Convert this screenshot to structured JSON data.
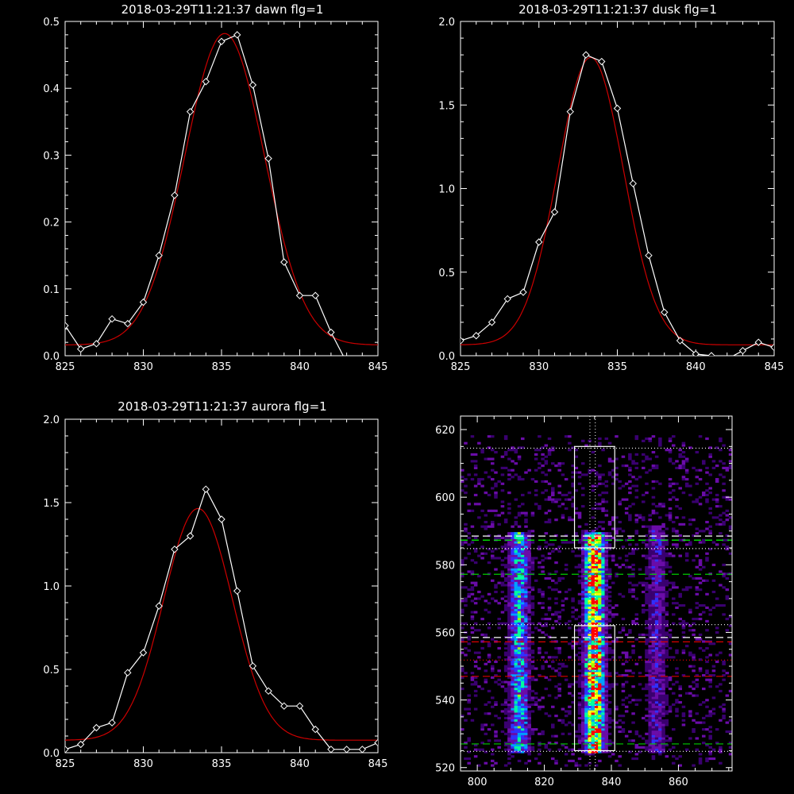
{
  "chart_data": [
    {
      "type": "line",
      "title": "2018-03-29T11:21:37 dawn flg=1",
      "xlim": [
        825,
        845
      ],
      "ylim": [
        0,
        0.5
      ],
      "xticks": [
        "825",
        "830",
        "835",
        "840",
        "845"
      ],
      "yticks": [
        "0.0",
        "0.1",
        "0.2",
        "0.3",
        "0.4",
        "0.5"
      ],
      "series": [
        {
          "style": "data",
          "color": "#ffffff",
          "x": [
            825,
            826,
            827,
            828,
            829,
            830,
            831,
            832,
            833,
            834,
            835,
            836,
            837,
            838,
            839,
            840,
            841,
            842,
            843,
            844
          ],
          "y": [
            0.045,
            0.01,
            0.018,
            0.055,
            0.048,
            0.08,
            0.15,
            0.24,
            0.365,
            0.41,
            0.47,
            0.48,
            0.405,
            0.295,
            0.14,
            0.09,
            0.09,
            0.035,
            -0.01,
            -0.01
          ]
        },
        {
          "style": "fit",
          "color": "#cc0000",
          "gauss": {
            "a": 0.466,
            "mu": 835.2,
            "sigma": 2.55,
            "c": 0.016
          }
        }
      ]
    },
    {
      "type": "line",
      "title": "2018-03-29T11:21:37 dusk flg=1",
      "xlim": [
        825,
        845
      ],
      "ylim": [
        0,
        2.0
      ],
      "xticks": [
        "825",
        "830",
        "835",
        "840",
        "845"
      ],
      "yticks": [
        "0.0",
        "0.5",
        "1.0",
        "1.5",
        "2.0"
      ],
      "series": [
        {
          "style": "data",
          "color": "#ffffff",
          "x": [
            825,
            826,
            827,
            828,
            829,
            830,
            831,
            832,
            833,
            834,
            835,
            836,
            837,
            838,
            839,
            840,
            841,
            842,
            843,
            844,
            845
          ],
          "y": [
            0.09,
            0.12,
            0.2,
            0.34,
            0.38,
            0.68,
            0.86,
            1.46,
            1.8,
            1.76,
            1.48,
            1.03,
            0.6,
            0.26,
            0.09,
            0.01,
            0.0,
            -0.02,
            0.03,
            0.08,
            0.05
          ]
        },
        {
          "style": "fit",
          "color": "#cc0000",
          "gauss": {
            "a": 1.72,
            "mu": 833.3,
            "sigma": 2.1,
            "c": 0.065
          }
        }
      ]
    },
    {
      "type": "line",
      "title": "2018-03-29T11:21:37 aurora flg=1",
      "xlim": [
        825,
        845
      ],
      "ylim": [
        0,
        2.0
      ],
      "xticks": [
        "825",
        "830",
        "835",
        "840",
        "845"
      ],
      "yticks": [
        "0.0",
        "0.5",
        "1.0",
        "1.5",
        "2.0"
      ],
      "series": [
        {
          "style": "data",
          "color": "#ffffff",
          "x": [
            825,
            826,
            827,
            828,
            829,
            830,
            831,
            832,
            833,
            834,
            835,
            836,
            837,
            838,
            839,
            840,
            841,
            842,
            843,
            844,
            845
          ],
          "y": [
            0.02,
            0.05,
            0.15,
            0.18,
            0.48,
            0.6,
            0.88,
            1.22,
            1.3,
            1.58,
            1.4,
            0.97,
            0.52,
            0.37,
            0.28,
            0.28,
            0.14,
            0.02,
            0.02,
            0.02,
            0.06
          ]
        },
        {
          "style": "fit",
          "color": "#cc0000",
          "gauss": {
            "a": 1.39,
            "mu": 833.5,
            "sigma": 2.2,
            "c": 0.075
          }
        }
      ]
    },
    {
      "type": "heatmap",
      "title": "",
      "xlim": [
        795,
        876
      ],
      "ylim": [
        519,
        624
      ],
      "xticks": [
        "800",
        "820",
        "840",
        "860"
      ],
      "yticks": [
        "520",
        "540",
        "560",
        "580",
        "600",
        "620"
      ],
      "colorscale": [
        "#000000",
        "#3a0070",
        "#6a0ca8",
        "#3030ff",
        "#00a0ff",
        "#00ffa0",
        "#a0ff00",
        "#ffff00",
        "#ff0000"
      ],
      "columns": [
        {
          "x": 812,
          "y0": 524,
          "y1": 589,
          "peak": 0.5
        },
        {
          "x": 834.5,
          "y0": 524,
          "y1": 589,
          "peak": 0.85
        },
        {
          "x": 853,
          "y0": 524,
          "y1": 591,
          "peak": 0.28
        }
      ],
      "boxes": [
        {
          "x0": 829,
          "x1": 841,
          "y0": 585,
          "y1": 615
        },
        {
          "x0": 829,
          "x1": 841,
          "y0": 525,
          "y1": 562
        }
      ],
      "hlines": [
        {
          "y": 614.5,
          "color": "#ffffff",
          "dash": "dot"
        },
        {
          "y": 588.5,
          "color": "#ffffff",
          "dash": "dash"
        },
        {
          "y": 587.3,
          "color": "#00ff00",
          "dash": "dash"
        },
        {
          "y": 584.8,
          "color": "#ffffff",
          "dash": "dot"
        },
        {
          "y": 577.2,
          "color": "#00cc00",
          "dash": "dash"
        },
        {
          "y": 562.3,
          "color": "#ffffff",
          "dash": "dot"
        },
        {
          "y": 558.5,
          "color": "#ffffff",
          "dash": "dash"
        },
        {
          "y": 557.2,
          "color": "#dd0000",
          "dash": "dash"
        },
        {
          "y": 551.8,
          "color": "#dd0000",
          "dash": "dot"
        },
        {
          "y": 547.0,
          "color": "#dd0000",
          "dash": "dash"
        },
        {
          "y": 527.0,
          "color": "#00cc00",
          "dash": "dash"
        },
        {
          "y": 524.8,
          "color": "#ffffff",
          "dash": "dot"
        }
      ],
      "vlines": [
        {
          "x": 833.6,
          "color": "#ffffff",
          "dash": "dot"
        },
        {
          "x": 835.2,
          "color": "#ffffff",
          "dash": "dot"
        }
      ]
    }
  ]
}
